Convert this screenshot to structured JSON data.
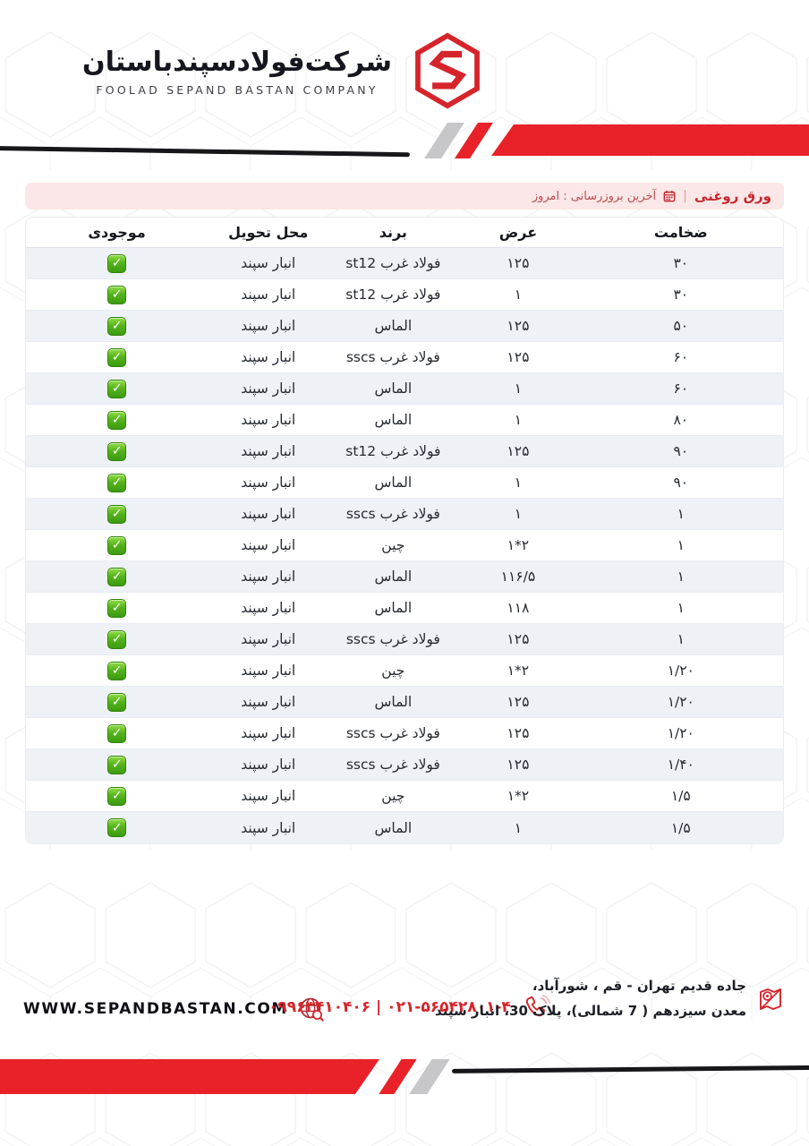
{
  "brand": {
    "company_name_fa": "شرکت‌فولادسپندباستان",
    "company_name_en": "FOOLAD SEPAND BASTAN COMPANY",
    "logo_icon": "hexagon-s-logo"
  },
  "title_bar": {
    "product": "ورق روغنی",
    "separator": "|",
    "calendar_icon": "calendar-icon",
    "last_update": "آخرین بروزرسانی : امروز"
  },
  "table": {
    "headers": {
      "thickness": "ضخامت",
      "width": "عرض",
      "brand": "برند",
      "delivery": "محل تحویل",
      "stock": "موجودی"
    },
    "stock_icon": "green-check-icon",
    "rows": [
      {
        "thickness": "۳۰",
        "width": "۱۲۵",
        "brand": "فولاد غرب st12",
        "delivery": "انبار سپند",
        "in_stock": true
      },
      {
        "thickness": "۳۰",
        "width": "۱",
        "brand": "فولاد غرب st12",
        "delivery": "انبار سپند",
        "in_stock": true
      },
      {
        "thickness": "۵۰",
        "width": "۱۲۵",
        "brand": "الماس",
        "delivery": "انبار سپند",
        "in_stock": true
      },
      {
        "thickness": "۶۰",
        "width": "۱۲۵",
        "brand": "فولاد غرب sscs",
        "delivery": "انبار سپند",
        "in_stock": true
      },
      {
        "thickness": "۶۰",
        "width": "۱",
        "brand": "الماس",
        "delivery": "انبار سپند",
        "in_stock": true
      },
      {
        "thickness": "۸۰",
        "width": "۱",
        "brand": "الماس",
        "delivery": "انبار سپند",
        "in_stock": true
      },
      {
        "thickness": "۹۰",
        "width": "۱۲۵",
        "brand": "فولاد غرب st12",
        "delivery": "انبار سپند",
        "in_stock": true
      },
      {
        "thickness": "۹۰",
        "width": "۱",
        "brand": "الماس",
        "delivery": "انبار سپند",
        "in_stock": true
      },
      {
        "thickness": "۱",
        "width": "۱",
        "brand": "فولاد غرب sscs",
        "delivery": "انبار سپند",
        "in_stock": true
      },
      {
        "thickness": "۱",
        "width": "۱*۲",
        "brand": "چین",
        "delivery": "انبار سپند",
        "in_stock": true
      },
      {
        "thickness": "۱",
        "width": "۱۱۶/۵",
        "brand": "الماس",
        "delivery": "انبار سپند",
        "in_stock": true
      },
      {
        "thickness": "۱",
        "width": "۱۱۸",
        "brand": "الماس",
        "delivery": "انبار سپند",
        "in_stock": true
      },
      {
        "thickness": "۱",
        "width": "۱۲۵",
        "brand": "فولاد غرب sscs",
        "delivery": "انبار سپند",
        "in_stock": true
      },
      {
        "thickness": "۱/۲۰",
        "width": "۱*۲",
        "brand": "چین",
        "delivery": "انبار سپند",
        "in_stock": true
      },
      {
        "thickness": "۱/۲۰",
        "width": "۱۲۵",
        "brand": "الماس",
        "delivery": "انبار سپند",
        "in_stock": true
      },
      {
        "thickness": "۱/۲۰",
        "width": "۱۲۵",
        "brand": "فولاد غرب sscs",
        "delivery": "انبار سپند",
        "in_stock": true
      },
      {
        "thickness": "۱/۴۰",
        "width": "۱۲۵",
        "brand": "فولاد غرب sscs",
        "delivery": "انبار سپند",
        "in_stock": true
      },
      {
        "thickness": "۱/۵",
        "width": "۱*۲",
        "brand": "چین",
        "delivery": "انبار سپند",
        "in_stock": true
      },
      {
        "thickness": "۱/۵",
        "width": "۱",
        "brand": "الماس",
        "delivery": "انبار سپند",
        "in_stock": true
      }
    ]
  },
  "footer": {
    "website": "WWW.SEPANDBASTAN.COM",
    "website_icon": "globe-search-icon",
    "phones": "۰۹۹۶۳۴۱۰۴۰۶ | ۰۲۱-۵۶۵۴۲۸۰۱-۴",
    "phone_icon": "phone-icon",
    "address_line1": "جاده قدیم تهران - قم ، شورآباد،",
    "address_line2": "معدن سیزدهم ( 7 شمالی)، پلاک 30، انبار سپند",
    "address_icon": "map-location-icon"
  },
  "colors": {
    "accent_red": "#e82228",
    "logo_red": "#d6242b",
    "title_text_red": "#c5272e",
    "title_bar_bg": "#fbe7e7",
    "row_stripe": "#eef1f6",
    "check_green": "#55b41c",
    "stripe_gray": "#c7c7c9",
    "line_black": "#17171a"
  }
}
